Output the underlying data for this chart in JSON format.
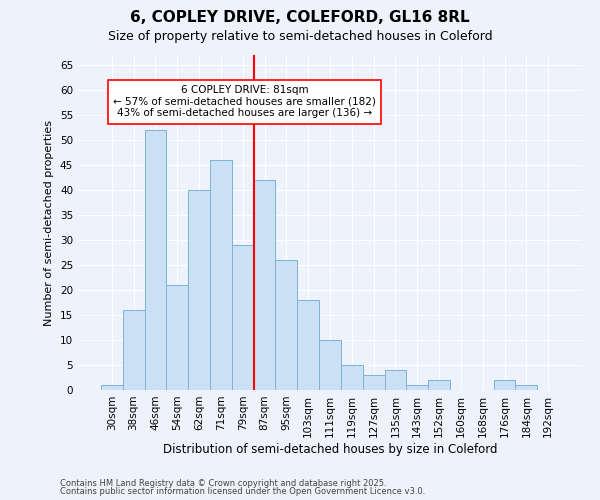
{
  "title_line1": "6, COPLEY DRIVE, COLEFORD, GL16 8RL",
  "title_line2": "Size of property relative to semi-detached houses in Coleford",
  "xlabel": "Distribution of semi-detached houses by size in Coleford",
  "ylabel": "Number of semi-detached properties",
  "categories": [
    "30sqm",
    "38sqm",
    "46sqm",
    "54sqm",
    "62sqm",
    "71sqm",
    "79sqm",
    "87sqm",
    "95sqm",
    "103sqm",
    "111sqm",
    "119sqm",
    "127sqm",
    "135sqm",
    "143sqm",
    "152sqm",
    "160sqm",
    "168sqm",
    "176sqm",
    "184sqm",
    "192sqm"
  ],
  "values": [
    1,
    16,
    52,
    21,
    40,
    46,
    29,
    42,
    26,
    18,
    10,
    5,
    3,
    4,
    1,
    2,
    0,
    0,
    2,
    1,
    0
  ],
  "bar_color": "#cce0f5",
  "bar_edge_color": "#7ab3d9",
  "red_line_index": 7.0,
  "annotation_line1": "6 COPLEY DRIVE: 81sqm",
  "annotation_line2": "← 57% of semi-detached houses are smaller (182)",
  "annotation_line3": "43% of semi-detached houses are larger (136) →",
  "ylim": [
    0,
    67
  ],
  "yticks": [
    0,
    5,
    10,
    15,
    20,
    25,
    30,
    35,
    40,
    45,
    50,
    55,
    60,
    65
  ],
  "background_color": "#eef2fa",
  "grid_color": "#ffffff",
  "footer_line1": "Contains HM Land Registry data © Crown copyright and database right 2025.",
  "footer_line2": "Contains public sector information licensed under the Open Government Licence v3.0.",
  "title_fontsize": 11,
  "subtitle_fontsize": 9,
  "tick_fontsize": 7.5,
  "ylabel_fontsize": 8,
  "xlabel_fontsize": 8.5,
  "annotation_fontsize": 7.5,
  "footer_fontsize": 6
}
